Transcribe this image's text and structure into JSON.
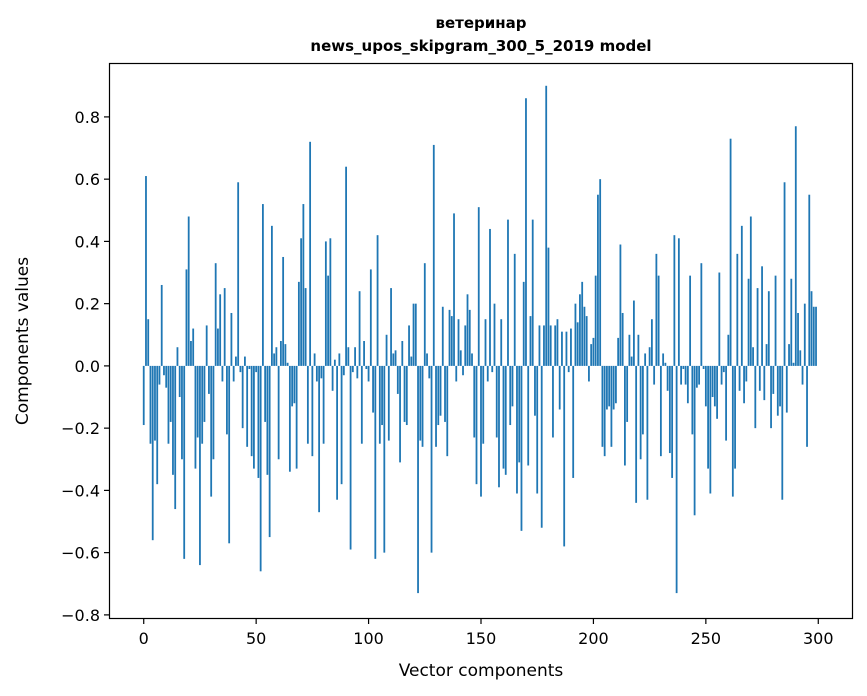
{
  "chart_data": {
    "type": "bar",
    "title_line1": "ветеринар",
    "title_line2": "news_upos_skipgram_300_5_2019 model",
    "xlabel": "Vector components",
    "ylabel": "Components values",
    "xlim": [
      -15,
      315
    ],
    "ylim": [
      -0.81,
      0.97
    ],
    "xticks": [
      0,
      50,
      100,
      150,
      200,
      250,
      300
    ],
    "xtick_labels": [
      "0",
      "50",
      "100",
      "150",
      "200",
      "250",
      "300"
    ],
    "yticks": [
      -0.8,
      -0.6,
      -0.4,
      -0.2,
      0.0,
      0.2,
      0.4,
      0.6,
      0.8
    ],
    "ytick_labels": [
      "−0.8",
      "−0.6",
      "−0.4",
      "−0.2",
      "0.0",
      "0.2",
      "0.4",
      "0.6",
      "0.8"
    ],
    "bar_color": "#1f77b4",
    "values": [
      -0.19,
      0.61,
      0.15,
      -0.25,
      -0.56,
      -0.24,
      -0.38,
      -0.06,
      0.26,
      -0.03,
      -0.07,
      -0.25,
      -0.18,
      -0.35,
      -0.46,
      0.06,
      -0.1,
      -0.3,
      -0.62,
      0.31,
      0.48,
      0.08,
      0.12,
      -0.33,
      -0.23,
      -0.64,
      -0.25,
      -0.18,
      0.13,
      -0.09,
      -0.42,
      -0.3,
      0.33,
      0.12,
      0.23,
      -0.05,
      0.25,
      -0.22,
      -0.57,
      0.17,
      -0.05,
      0.03,
      0.59,
      -0.02,
      -0.2,
      0.03,
      -0.26,
      -0.01,
      -0.29,
      -0.33,
      -0.02,
      -0.36,
      -0.66,
      0.52,
      -0.18,
      -0.35,
      -0.55,
      0.45,
      0.04,
      0.06,
      -0.3,
      0.08,
      0.35,
      0.07,
      0.01,
      -0.34,
      -0.13,
      -0.12,
      -0.33,
      0.27,
      0.41,
      0.52,
      0.25,
      -0.25,
      0.72,
      -0.29,
      0.04,
      -0.05,
      -0.47,
      -0.04,
      -0.25,
      0.4,
      0.29,
      0.41,
      -0.08,
      0.02,
      -0.43,
      0.04,
      -0.38,
      -0.03,
      0.64,
      0.06,
      -0.59,
      -0.02,
      0.06,
      -0.04,
      0.24,
      -0.25,
      0.08,
      -0.01,
      -0.05,
      0.31,
      -0.15,
      -0.62,
      0.42,
      -0.25,
      -0.19,
      -0.6,
      0.1,
      -0.24,
      0.25,
      0.04,
      0.05,
      -0.09,
      -0.31,
      0.08,
      -0.18,
      -0.19,
      0.13,
      0.03,
      0.2,
      0.2,
      -0.73,
      -0.24,
      -0.26,
      0.33,
      0.04,
      -0.04,
      -0.6,
      0.71,
      -0.26,
      -0.19,
      -0.16,
      0.19,
      -0.18,
      -0.29,
      0.18,
      0.16,
      0.49,
      -0.05,
      0.15,
      0.05,
      -0.03,
      0.13,
      0.23,
      0.18,
      0.04,
      -0.23,
      -0.38,
      0.51,
      -0.42,
      -0.25,
      0.15,
      -0.05,
      0.44,
      -0.02,
      0.2,
      -0.23,
      -0.39,
      0.15,
      -0.33,
      -0.35,
      0.47,
      -0.19,
      -0.13,
      0.36,
      -0.41,
      -0.31,
      -0.53,
      0.27,
      0.86,
      -0.32,
      0.16,
      0.47,
      -0.16,
      -0.41,
      0.13,
      -0.52,
      0.13,
      0.9,
      0.38,
      0.13,
      -0.23,
      0.13,
      0.15,
      -0.14,
      0.11,
      -0.58,
      0.11,
      -0.02,
      0.12,
      -0.36,
      0.2,
      0.14,
      0.23,
      0.27,
      0.19,
      0.16,
      -0.05,
      0.07,
      0.09,
      0.29,
      0.55,
      0.6,
      -0.26,
      -0.29,
      -0.14,
      -0.13,
      -0.26,
      -0.14,
      -0.12,
      0.09,
      0.39,
      0.17,
      -0.32,
      -0.18,
      0.1,
      0.03,
      0.21,
      -0.44,
      0.1,
      -0.3,
      -0.22,
      0.04,
      -0.43,
      0.06,
      0.15,
      -0.06,
      0.36,
      0.29,
      -0.29,
      0.04,
      0.01,
      -0.08,
      -0.28,
      -0.36,
      0.42,
      -0.73,
      0.41,
      -0.06,
      -0.01,
      -0.06,
      -0.12,
      0.29,
      -0.22,
      -0.48,
      -0.07,
      -0.06,
      0.33,
      -0.01,
      -0.13,
      -0.33,
      -0.41,
      -0.1,
      -0.13,
      -0.17,
      0.3,
      -0.06,
      -0.02,
      -0.24,
      0.1,
      0.73,
      -0.42,
      -0.33,
      0.36,
      -0.08,
      0.45,
      -0.12,
      -0.05,
      0.28,
      0.48,
      0.06,
      -0.2,
      0.25,
      -0.08,
      0.32,
      -0.11,
      0.07,
      0.24,
      -0.2,
      -0.09,
      0.29,
      -0.16,
      -0.13,
      -0.43,
      0.59,
      -0.15,
      0.07,
      0.28,
      0.01,
      0.77,
      0.17,
      0.05,
      -0.06,
      0.2,
      -0.26,
      0.55,
      0.24,
      0.19,
      0.19
    ]
  }
}
